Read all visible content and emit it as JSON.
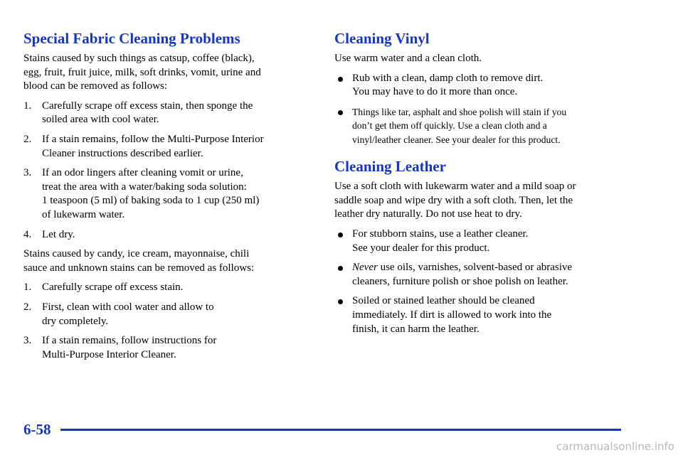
{
  "left": {
    "title": "Special Fabric Cleaning Problems",
    "intro": [
      "Stains caused by such things as catsup, coffee (black),",
      "egg, fruit, fruit juice, milk, soft drinks, vomit, urine and",
      "blood can be removed as follows:"
    ],
    "steps": [
      {
        "number": "1.",
        "lines": [
          "Carefully scrape off excess stain, then sponge the",
          "soiled area with cool water."
        ]
      },
      {
        "number": "2.",
        "lines": [
          "If a stain remains, follow the Multi-Purpose Interior",
          "Cleaner instructions described earlier."
        ]
      },
      {
        "number": "3.",
        "lines": [
          "If an odor lingers after cleaning vomit or urine,",
          "treat the area with a water/baking soda solution:",
          "1 teaspoon (5 ml) of baking soda to 1 cup (250 ml)",
          "of lukewarm water."
        ]
      },
      {
        "number": "4.",
        "lines": [
          "Let dry."
        ]
      }
    ],
    "para": [
      "Stains caused by candy, ice cream, mayonnaise, chili",
      "sauce and unknown stains can be removed as follows:"
    ],
    "steps2": [
      {
        "number": "1.",
        "lines": [
          "Carefully scrape off excess stain."
        ]
      },
      {
        "number": "2.",
        "lines": [
          "First, clean with cool water and allow to",
          "dry completely."
        ]
      },
      {
        "number": "3.",
        "lines": [
          "If a stain remains, follow instructions for",
          "Multi-Purpose Interior Cleaner."
        ]
      }
    ]
  },
  "right": {
    "vinyl": {
      "title": "Cleaning Vinyl",
      "intro": [
        "Use warm water and a clean cloth."
      ],
      "bullets": [
        {
          "lines": [
            "Rub with a clean, damp cloth to remove dirt.",
            "You may have to do it more than once."
          ]
        },
        {
          "lines": [
            "Things like tar, asphalt and shoe polish will stain if you",
            "don’t get them off quickly. Use a clean cloth and a",
            "vinyl/leather cleaner. See your dealer for this product."
          ]
        }
      ]
    },
    "leather": {
      "title": "Cleaning Leather",
      "intro": [
        "Use a soft cloth with lukewarm water and a mild soap or",
        "saddle soap and wipe dry with a soft cloth. Then, let the",
        "leather dry naturally. Do not use heat to dry."
      ],
      "bullets": [
        {
          "lines": [
            "For stubborn stains, use a leather cleaner.",
            "See your dealer for this product."
          ]
        },
        {
          "emphasis": "Never",
          "lines": [
            "use oils, varnishes, solvent-based or abrasive",
            "cleaners, furniture polish or shoe polish on leather."
          ]
        },
        {
          "lines": [
            "Soiled or stained leather should be cleaned",
            "immediately. If dirt is allowed to work into the",
            "finish, it can harm the leather."
          ]
        }
      ]
    }
  },
  "footer": {
    "page": "6-58",
    "watermark": "carmanualsonline.info"
  }
}
